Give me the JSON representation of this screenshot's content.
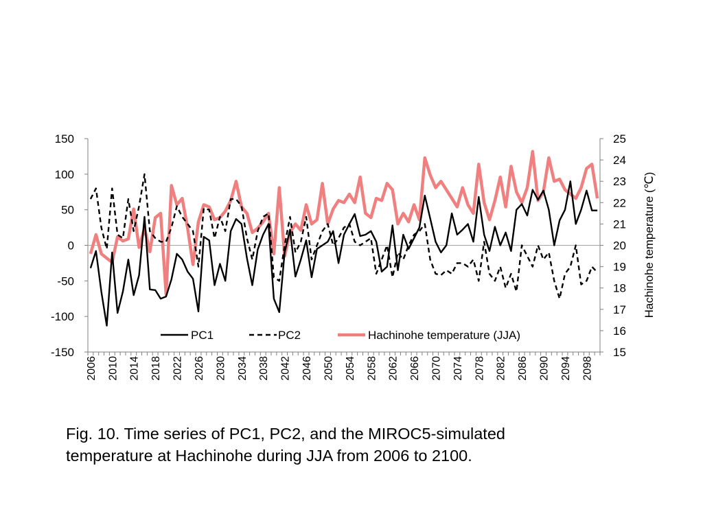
{
  "chart_data": {
    "type": "line",
    "title": "",
    "xlabel": "",
    "ylabel_left": "",
    "ylabel_right": "Hachinohe temperature (℃)",
    "x_range": [
      2006,
      2100
    ],
    "ylim_left": [
      -150,
      150
    ],
    "ylim_right": [
      15,
      25
    ],
    "yticks_left": [
      "150",
      "100",
      "50",
      "0",
      "-50",
      "-100",
      "-150"
    ],
    "yticks_right": [
      "25",
      "24",
      "23",
      "22",
      "21",
      "20",
      "19",
      "18",
      "17",
      "16",
      "15"
    ],
    "xticks": [
      "2006",
      "2010",
      "2014",
      "2018",
      "2022",
      "2026",
      "2030",
      "2034",
      "2038",
      "2042",
      "2046",
      "2050",
      "2054",
      "2058",
      "2062",
      "2066",
      "2070",
      "2074",
      "2078",
      "2082",
      "2086",
      "2090",
      "2094",
      "2098"
    ],
    "legend_position": "bottom-center",
    "grid": "zero line only",
    "x": [
      2006,
      2007,
      2008,
      2009,
      2010,
      2011,
      2012,
      2013,
      2014,
      2015,
      2016,
      2017,
      2018,
      2019,
      2020,
      2021,
      2022,
      2023,
      2024,
      2025,
      2026,
      2027,
      2028,
      2029,
      2030,
      2031,
      2032,
      2033,
      2034,
      2035,
      2036,
      2037,
      2038,
      2039,
      2040,
      2041,
      2042,
      2043,
      2044,
      2045,
      2046,
      2047,
      2048,
      2049,
      2050,
      2051,
      2052,
      2053,
      2054,
      2055,
      2056,
      2057,
      2058,
      2059,
      2060,
      2061,
      2062,
      2063,
      2064,
      2065,
      2066,
      2067,
      2068,
      2069,
      2070,
      2071,
      2072,
      2073,
      2074,
      2075,
      2076,
      2077,
      2078,
      2079,
      2080,
      2081,
      2082,
      2083,
      2084,
      2085,
      2086,
      2087,
      2088,
      2089,
      2090,
      2091,
      2092,
      2093,
      2094,
      2095,
      2096,
      2097,
      2098,
      2099,
      2100
    ],
    "series": [
      {
        "name": "PC1",
        "axis": "left",
        "color": "#000000",
        "dash": "solid",
        "values": [
          -32,
          -8,
          -65,
          -113,
          -10,
          -95,
          -65,
          -20,
          -70,
          -42,
          40,
          -62,
          -63,
          -75,
          -72,
          -48,
          -12,
          -20,
          -37,
          -47,
          -93,
          12,
          7,
          -56,
          -26,
          -50,
          20,
          37,
          30,
          -18,
          -56,
          -6,
          15,
          30,
          -75,
          -94,
          -10,
          22,
          -44,
          -20,
          7,
          -45,
          -5,
          0,
          5,
          20,
          -25,
          15,
          30,
          44,
          13,
          15,
          20,
          5,
          -37,
          -30,
          28,
          -35,
          15,
          -5,
          10,
          25,
          70,
          38,
          5,
          -10,
          0,
          45,
          15,
          22,
          30,
          5,
          68,
          15,
          -8,
          26,
          0,
          18,
          -8,
          50,
          58,
          42,
          78,
          64,
          77,
          50,
          0,
          35,
          50,
          90,
          30,
          50,
          77,
          49,
          49
        ]
      },
      {
        "name": "PC2",
        "axis": "left",
        "color": "#000000",
        "dash": "dashed",
        "values": [
          65,
          80,
          25,
          -5,
          80,
          15,
          10,
          65,
          20,
          55,
          100,
          20,
          10,
          5,
          5,
          25,
          55,
          40,
          30,
          20,
          -30,
          52,
          50,
          10,
          40,
          20,
          65,
          65,
          55,
          10,
          -20,
          20,
          40,
          45,
          -45,
          -50,
          0,
          40,
          -10,
          5,
          40,
          -20,
          0,
          20,
          30,
          0,
          10,
          25,
          30,
          5,
          0,
          5,
          10,
          -40,
          -20,
          0,
          -45,
          -10,
          -20,
          0,
          15,
          20,
          30,
          -20,
          -40,
          -42,
          -35,
          -40,
          -25,
          -25,
          -30,
          -20,
          -50,
          5,
          -40,
          -50,
          -30,
          -60,
          -40,
          -65,
          0,
          -15,
          -30,
          0,
          -20,
          -10,
          -50,
          -75,
          -40,
          -30,
          0,
          -55,
          -50,
          -30,
          -38
        ]
      },
      {
        "name": "Hachinohe temperature (JJA)",
        "axis": "right",
        "color": "#f08080",
        "dash": "solid",
        "values": [
          19.6,
          20.5,
          19.6,
          19.4,
          19.2,
          20.4,
          20.2,
          20.3,
          21.7,
          19.9,
          20.8,
          19.7,
          21.3,
          21.5,
          17.7,
          22.8,
          21.9,
          22.2,
          20.8,
          19.1,
          21.1,
          21.9,
          21.8,
          21.2,
          21.3,
          21.6,
          22.1,
          23.0,
          21.8,
          21.5,
          20.6,
          20.8,
          21.1,
          21.5,
          19.6,
          22.7,
          19.5,
          20.6,
          21.0,
          20.7,
          21.9,
          21.0,
          21.2,
          22.9,
          21.0,
          21.7,
          22.1,
          22.0,
          22.4,
          22.0,
          23.2,
          21.5,
          21.3,
          22.2,
          22.1,
          22.9,
          22.6,
          21.0,
          21.5,
          21.1,
          21.9,
          21.2,
          24.1,
          23.3,
          22.7,
          23.0,
          22.6,
          22.2,
          21.8,
          22.7,
          21.9,
          21.5,
          23.8,
          22.0,
          21.2,
          22.1,
          23.2,
          21.8,
          23.7,
          22.5,
          22.0,
          22.7,
          24.4,
          22.1,
          22.5,
          24.1,
          23.0,
          23.1,
          22.6,
          22.4,
          22.2,
          22.7,
          23.6,
          23.8,
          22.2
        ]
      }
    ]
  },
  "caption": {
    "line1": "Fig. 10. Time series of PC1, PC2, and the MIROC5-simulated",
    "line2": "temperature at Hachinohe during JJA from 2006 to 2100."
  }
}
